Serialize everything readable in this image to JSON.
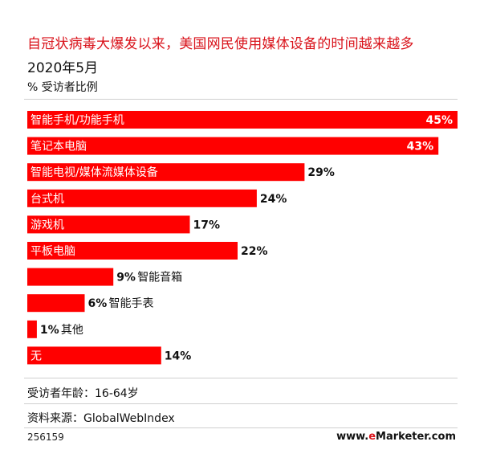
{
  "header": {
    "title": "自冠状病毒大爆发以来，美国网民使用媒体设备的时间越来越多",
    "subtitle": "2020年5月",
    "unit": "% 受访者比例"
  },
  "chart_data": {
    "type": "bar",
    "orientation": "horizontal",
    "title": "自冠状病毒大爆发以来，美国网民使用媒体设备的时间越来越多",
    "subtitle": "2020年5月",
    "xlabel": "% 受访者比例",
    "xlim": [
      0,
      45
    ],
    "categories": [
      "智能手机/功能手机",
      "笔记本电脑",
      "智能电视/媒体流媒体设备",
      "台式机",
      "游戏机",
      "平板电脑",
      "智能音箱",
      "智能手表",
      "其他",
      "无"
    ],
    "values": [
      45,
      43,
      29,
      24,
      17,
      22,
      9,
      6,
      1,
      14
    ],
    "value_labels": [
      "45%",
      "43%",
      "29%",
      "24%",
      "17%",
      "22%",
      "9%",
      "6%",
      "1%",
      "14%"
    ],
    "grid": false,
    "legend": "none",
    "bar_color": "#ff0000"
  },
  "notes": {
    "sample": "受访者年龄：16-64岁",
    "source": "资料来源：GlobalWebIndex"
  },
  "footer": {
    "id": "256159",
    "brand_prefix": "www.",
    "brand_e": "e",
    "brand_rest": "Marketer.com"
  }
}
